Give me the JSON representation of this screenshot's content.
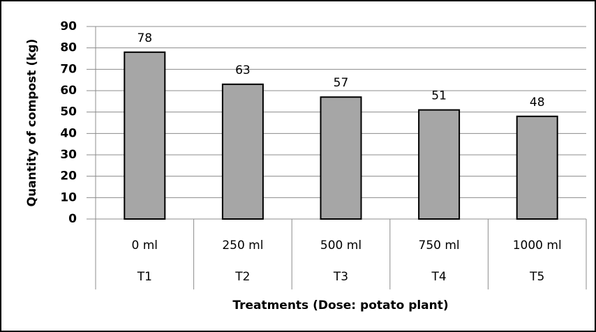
{
  "chart_data": {
    "type": "bar",
    "categories": [
      "0 ml",
      "250 ml",
      "500 ml",
      "750 ml",
      "1000 ml"
    ],
    "treatments": [
      "T1",
      "T2",
      "T3",
      "T4",
      "T5"
    ],
    "values": [
      78,
      63,
      57,
      51,
      48
    ],
    "color": "#a6a6a6",
    "xlabel": "Treatments (Dose: potato plant)",
    "ylabel": "Quantity of compost (kg)",
    "ylim": [
      0,
      90
    ],
    "yticks": [
      0,
      10,
      20,
      30,
      40,
      50,
      60,
      70,
      80,
      90
    ],
    "grid": true
  }
}
